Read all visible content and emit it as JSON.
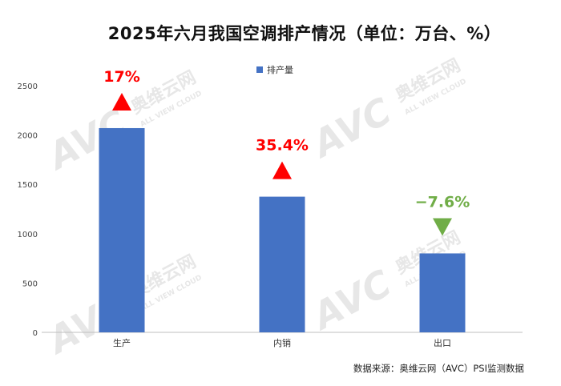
{
  "chart_data": {
    "type": "bar",
    "title": "2025年六月我国空调排产情况（单位：万台、%）",
    "categories": [
      "生产",
      "内销",
      "出口"
    ],
    "series": [
      {
        "name": "排产量",
        "values": [
          2070,
          1375,
          800
        ],
        "color": "#4472c4"
      }
    ],
    "annotations": [
      {
        "category": "生产",
        "text": "17%",
        "direction": "up",
        "color": "#ff0000"
      },
      {
        "category": "内销",
        "text": "35.4%",
        "direction": "up",
        "color": "#ff0000"
      },
      {
        "category": "出口",
        "text": "−7.6%",
        "direction": "down",
        "color": "#70ad47"
      }
    ],
    "ylim": [
      0,
      2500
    ],
    "yticks": [
      0,
      500,
      1000,
      1500,
      2000,
      2500
    ],
    "grid": false,
    "legend_position": "top-center"
  },
  "watermark": {
    "logo_text": "AVC",
    "brand_cn": "奥维云网",
    "brand_en": "ALL VIEW CLOUD"
  },
  "source_text": "数据来源：奥维云网（AVC）PSI监测数据"
}
